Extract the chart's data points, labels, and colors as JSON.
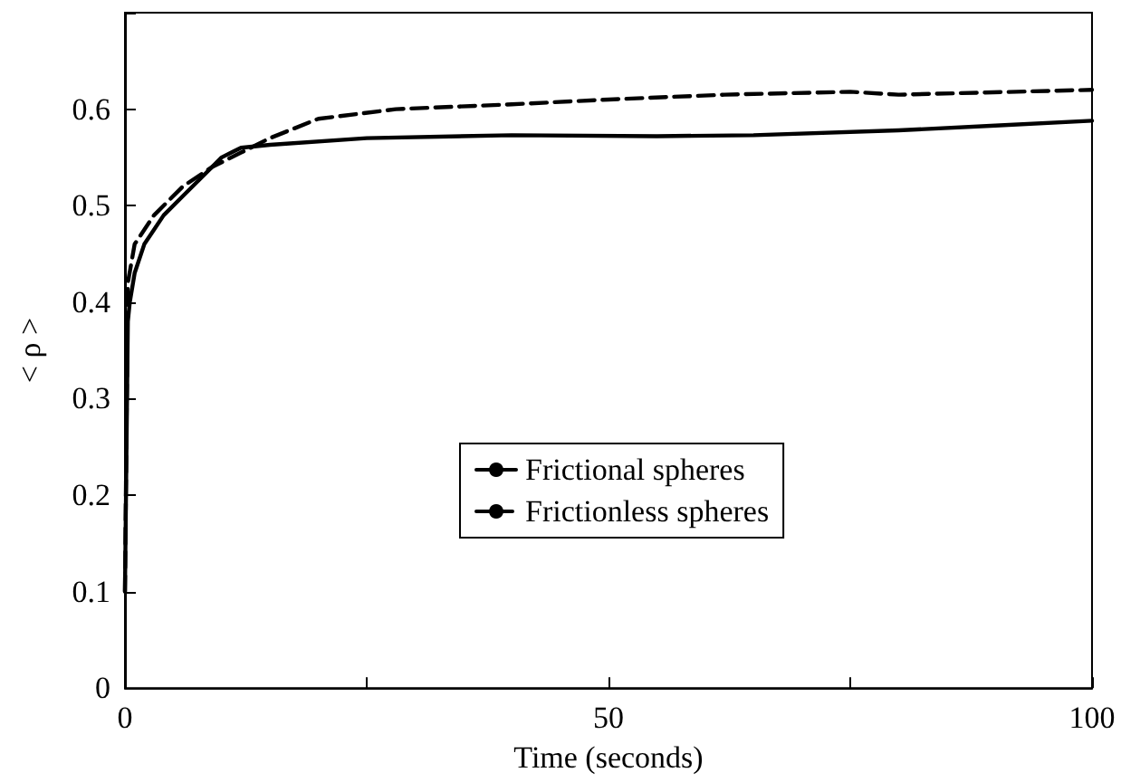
{
  "chart_data": {
    "type": "line",
    "xlabel": "Time (seconds)",
    "ylabel": "< ρ >",
    "xlim": [
      0,
      100
    ],
    "xticks": [
      0,
      {
        "value": 25,
        "label": null
      },
      50,
      {
        "value": 75,
        "label": null
      },
      100
    ],
    "ylim": [
      0,
      0.7
    ],
    "yticks": [
      0,
      0.1,
      0.2,
      0.3,
      0.4,
      0.5,
      0.6,
      {
        "value": 0.7,
        "label": null
      }
    ],
    "grid": false,
    "legend": "center",
    "marker": "none",
    "series": [
      {
        "name": "Frictional spheres",
        "color": "#000000",
        "line_style": "solid",
        "x": [
          0,
          0.3,
          0.5,
          1,
          2,
          4,
          6,
          8,
          10,
          12,
          15,
          25,
          40,
          55,
          65,
          80,
          90,
          100
        ],
        "values": [
          0.1,
          0.38,
          0.4,
          0.43,
          0.46,
          0.49,
          0.51,
          0.53,
          0.55,
          0.56,
          0.563,
          0.57,
          0.573,
          0.572,
          0.573,
          0.578,
          0.583,
          0.588
        ]
      },
      {
        "name": "Frictionless spheres",
        "color": "#000000",
        "line_style": "dashed",
        "x": [
          0,
          0.3,
          1,
          3,
          6,
          9,
          12,
          15,
          20,
          28,
          40,
          50,
          62,
          75,
          80,
          100
        ],
        "values": [
          0.1,
          0.42,
          0.46,
          0.49,
          0.52,
          0.54,
          0.555,
          0.57,
          0.59,
          0.6,
          0.605,
          0.61,
          0.615,
          0.618,
          0.615,
          0.62
        ]
      }
    ]
  }
}
